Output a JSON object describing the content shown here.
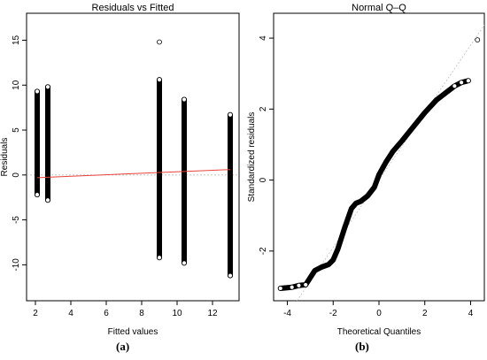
{
  "captions": {
    "left": "(a)",
    "right": "(b)"
  },
  "colors": {
    "points": "#000000",
    "smoother": "#e8443a",
    "zero_line": "#bdbdbd",
    "qq_line": "#bdbdbd",
    "axes": "#000000"
  },
  "chart_data": [
    {
      "type": "scatter",
      "title": "Residuals vs Fitted",
      "xlabel": "Fitted values",
      "ylabel": "Residuals",
      "xlim": [
        1.5,
        13.5
      ],
      "ylim": [
        -14,
        18
      ],
      "xticks": [
        2,
        4,
        6,
        8,
        10,
        12
      ],
      "yticks": [
        -10,
        -5,
        0,
        5,
        10,
        15
      ],
      "grid": false,
      "groups": [
        {
          "fitted": 2.1,
          "min": -2.2,
          "max": 9.3
        },
        {
          "fitted": 2.7,
          "min": -2.8,
          "max": 9.8
        },
        {
          "fitted": 9.0,
          "min": -9.2,
          "max": 10.6
        },
        {
          "fitted": 10.4,
          "min": -9.8,
          "max": 8.4
        },
        {
          "fitted": 13.0,
          "min": -11.2,
          "max": 6.7
        }
      ],
      "outliers": [
        {
          "x": 9.0,
          "y": 14.8
        }
      ],
      "smoother": {
        "x": [
          2.1,
          13.0
        ],
        "y": [
          -0.3,
          0.6
        ]
      },
      "reference_line_y": 0
    },
    {
      "type": "scatter",
      "title": "Normal Q–Q",
      "xlabel": "Theoretical Quantiles",
      "ylabel": "Standardized residuals",
      "xlim": [
        -4.6,
        4.6
      ],
      "ylim": [
        -3.4,
        4.7
      ],
      "xticks": [
        -4,
        -2,
        0,
        2,
        4
      ],
      "yticks": [
        -2,
        0,
        2,
        4
      ],
      "grid": false,
      "curve": [
        [
          -4.3,
          -3.05
        ],
        [
          -3.8,
          -3.02
        ],
        [
          -3.5,
          -2.97
        ],
        [
          -3.2,
          -2.95
        ],
        [
          -3.0,
          -2.75
        ],
        [
          -2.8,
          -2.55
        ],
        [
          -2.5,
          -2.45
        ],
        [
          -2.2,
          -2.38
        ],
        [
          -2.0,
          -2.25
        ],
        [
          -1.8,
          -1.95
        ],
        [
          -1.5,
          -1.35
        ],
        [
          -1.2,
          -0.8
        ],
        [
          -1.0,
          -0.65
        ],
        [
          -0.8,
          -0.6
        ],
        [
          -0.5,
          -0.45
        ],
        [
          -0.2,
          -0.2
        ],
        [
          0.0,
          0.15
        ],
        [
          0.3,
          0.5
        ],
        [
          0.6,
          0.8
        ],
        [
          1.0,
          1.1
        ],
        [
          1.5,
          1.5
        ],
        [
          2.0,
          1.9
        ],
        [
          2.5,
          2.25
        ],
        [
          3.0,
          2.5
        ],
        [
          3.3,
          2.65
        ],
        [
          3.6,
          2.75
        ],
        [
          3.9,
          2.8
        ]
      ],
      "outliers": [
        {
          "x": 4.3,
          "y": 3.95
        }
      ],
      "reference_line": {
        "slope": 0.95,
        "intercept": 0.0
      }
    }
  ]
}
